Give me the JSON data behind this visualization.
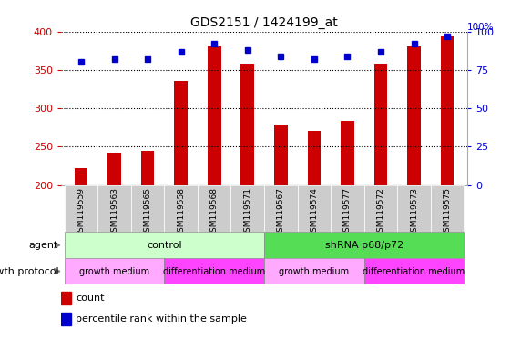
{
  "title": "GDS2151 / 1424199_at",
  "samples": [
    "GSM119559",
    "GSM119563",
    "GSM119565",
    "GSM119558",
    "GSM119568",
    "GSM119571",
    "GSM119567",
    "GSM119574",
    "GSM119577",
    "GSM119572",
    "GSM119573",
    "GSM119575"
  ],
  "counts": [
    222,
    242,
    244,
    336,
    380,
    358,
    279,
    271,
    284,
    358,
    381,
    393
  ],
  "percentile_ranks": [
    80,
    82,
    82,
    87,
    92,
    88,
    84,
    82,
    84,
    87,
    92,
    97
  ],
  "ymin": 200,
  "ymax": 400,
  "yticks": [
    200,
    250,
    300,
    350,
    400
  ],
  "y2min": 0,
  "y2max": 100,
  "y2ticks": [
    0,
    25,
    50,
    75,
    100
  ],
  "bar_color": "#cc0000",
  "dot_color": "#0000cc",
  "bar_width": 0.4,
  "agent_groups": [
    {
      "text": "control",
      "start": 0,
      "end": 5,
      "color": "#ccffcc"
    },
    {
      "text": "shRNA p68/p72",
      "start": 6,
      "end": 11,
      "color": "#55dd55"
    }
  ],
  "growth_groups": [
    {
      "text": "growth medium",
      "start": 0,
      "end": 2,
      "color": "#ffaaff"
    },
    {
      "text": "differentiation medium",
      "start": 3,
      "end": 5,
      "color": "#ff44ff"
    },
    {
      "text": "growth medium",
      "start": 6,
      "end": 8,
      "color": "#ffaaff"
    },
    {
      "text": "differentiation medium",
      "start": 9,
      "end": 11,
      "color": "#ff44ff"
    }
  ],
  "legend_items": [
    {
      "color": "#cc0000",
      "label": "count",
      "marker": "s"
    },
    {
      "color": "#0000cc",
      "label": "percentile rank within the sample",
      "marker": "s"
    }
  ],
  "xtick_bg": "#cccccc"
}
